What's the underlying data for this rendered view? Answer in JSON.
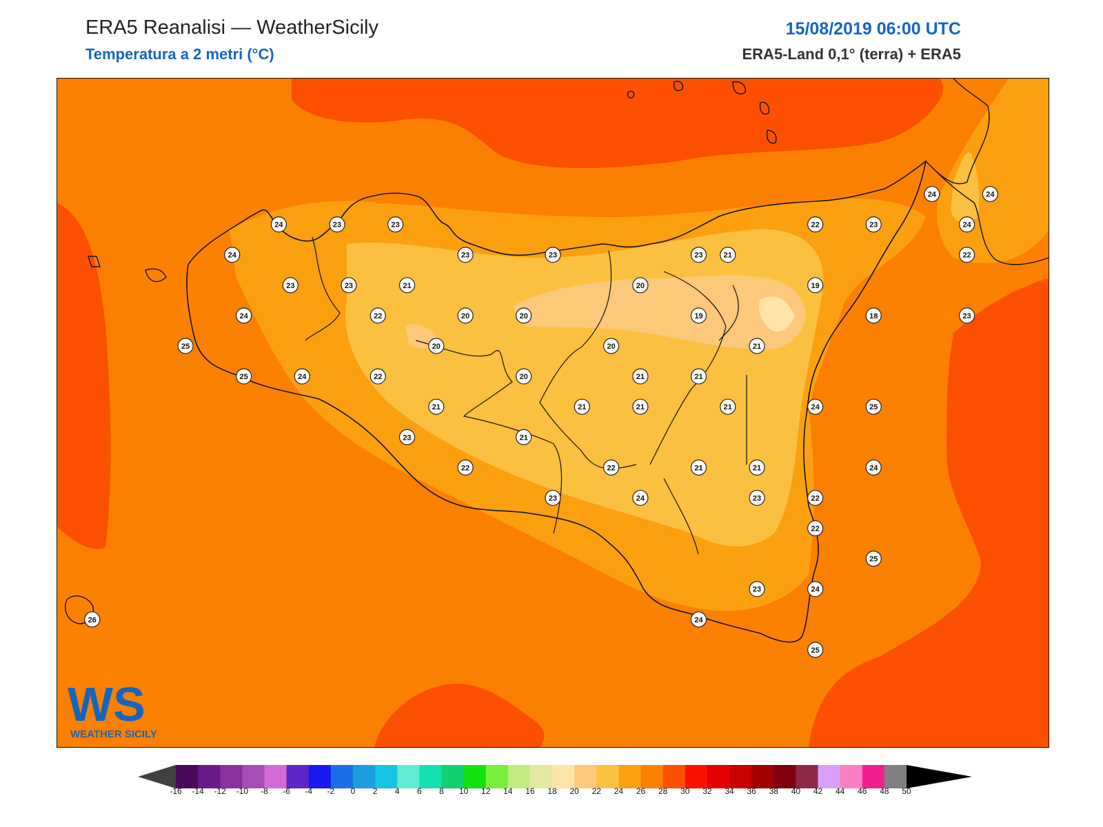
{
  "header": {
    "title": "ERA5 Reanalisi — WeatherSicily",
    "subtitle": "Temperatura a 2 metri (°C)",
    "datetime": "15/08/2019 06:00 UTC",
    "source": "ERA5-Land 0,1° (terra) + ERA5"
  },
  "logo": {
    "text": "WEATHER SICILY",
    "letters": "WS"
  },
  "colorbar": {
    "ticks": [
      "-16",
      "-14",
      "-12",
      "-10",
      "-8",
      "-6",
      "-4",
      "-2",
      "0",
      "2",
      "4",
      "6",
      "8",
      "10",
      "12",
      "14",
      "16",
      "18",
      "20",
      "22",
      "24",
      "26",
      "28",
      "30",
      "32",
      "34",
      "36",
      "38",
      "40",
      "42",
      "44",
      "46",
      "48",
      "50"
    ],
    "colors": [
      "#4a0a5a",
      "#6a1a8a",
      "#8a30a0",
      "#a64eb6",
      "#d46ad8",
      "#5a26c8",
      "#1a1aee",
      "#1a6ee6",
      "#1a9ede",
      "#14c4e0",
      "#60ecd0",
      "#14e0b0",
      "#10d070",
      "#14e010",
      "#7aee3a",
      "#c0ec80",
      "#e4e8a0",
      "#ffe4a8",
      "#fcc87a",
      "#fcc040",
      "#fca010",
      "#fc8000",
      "#fc5000",
      "#fc1000",
      "#e40000",
      "#c80000",
      "#a00000",
      "#800010",
      "#902848",
      "#d8a0f8",
      "#fc80c0",
      "#f02090",
      "#808080",
      "#404040"
    ],
    "under_color": "#404040",
    "over_color": "#000000"
  },
  "stations": [
    {
      "v": "24",
      "lon": 12.9,
      "lat": 38.18
    },
    {
      "v": "23",
      "lon": 13.4,
      "lat": 38.18
    },
    {
      "v": "23",
      "lon": 13.9,
      "lat": 38.18
    },
    {
      "v": "24",
      "lon": 12.5,
      "lat": 38.03
    },
    {
      "v": "23",
      "lon": 13.0,
      "lat": 37.88
    },
    {
      "v": "23",
      "lon": 13.5,
      "lat": 37.88
    },
    {
      "v": "21",
      "lon": 14.0,
      "lat": 37.88
    },
    {
      "v": "24",
      "lon": 12.6,
      "lat": 37.73
    },
    {
      "v": "22",
      "lon": 13.75,
      "lat": 37.73
    },
    {
      "v": "20",
      "lon": 14.5,
      "lat": 37.73
    },
    {
      "v": "20",
      "lon": 15.0,
      "lat": 37.73
    },
    {
      "v": "25",
      "lon": 12.1,
      "lat": 37.58
    },
    {
      "v": "20",
      "lon": 14.25,
      "lat": 37.58
    },
    {
      "v": "25",
      "lon": 12.6,
      "lat": 37.43
    },
    {
      "v": "24",
      "lon": 13.1,
      "lat": 37.43
    },
    {
      "v": "22",
      "lon": 13.75,
      "lat": 37.43
    },
    {
      "v": "20",
      "lon": 15.0,
      "lat": 37.43
    },
    {
      "v": "21",
      "lon": 14.25,
      "lat": 37.28
    },
    {
      "v": "23",
      "lon": 14.0,
      "lat": 37.13
    },
    {
      "v": "21",
      "lon": 15.0,
      "lat": 37.13
    },
    {
      "v": "22",
      "lon": 14.5,
      "lat": 36.98
    },
    {
      "v": "23",
      "lon": 15.25,
      "lat": 36.83
    },
    {
      "v": "23",
      "lon": 14.5,
      "lat": 38.03
    },
    {
      "v": "23",
      "lon": 15.25,
      "lat": 38.03
    },
    {
      "v": "20",
      "lon": 16.0,
      "lat": 37.88
    },
    {
      "v": "20",
      "lon": 15.75,
      "lat": 37.58
    },
    {
      "v": "21",
      "lon": 15.5,
      "lat": 37.28
    },
    {
      "v": "21",
      "lon": 16.0,
      "lat": 37.28
    },
    {
      "v": "22",
      "lon": 15.75,
      "lat": 36.98
    },
    {
      "v": "24",
      "lon": 16.0,
      "lat": 36.83
    },
    {
      "v": "23",
      "lon": 16.5,
      "lat": 38.03
    },
    {
      "v": "21",
      "lon": 16.75,
      "lat": 38.03
    },
    {
      "v": "19",
      "lon": 16.5,
      "lat": 37.73
    },
    {
      "v": "21",
      "lon": 16.5,
      "lat": 37.43
    },
    {
      "v": "21",
      "lon": 16.0,
      "lat": 37.43
    },
    {
      "v": "21",
      "lon": 16.75,
      "lat": 37.28
    },
    {
      "v": "21",
      "lon": 16.5,
      "lat": 36.98
    },
    {
      "v": "21",
      "lon": 17.0,
      "lat": 36.98
    },
    {
      "v": "23",
      "lon": 17.0,
      "lat": 36.83
    },
    {
      "v": "22",
      "lon": 17.5,
      "lat": 36.83
    },
    {
      "v": "22",
      "lon": 17.5,
      "lat": 38.18
    },
    {
      "v": "19",
      "lon": 17.5,
      "lat": 37.88
    },
    {
      "v": "21",
      "lon": 17.0,
      "lat": 37.58
    },
    {
      "v": "24",
      "lon": 17.5,
      "lat": 37.28
    },
    {
      "v": "18",
      "lon": 18.0,
      "lat": 37.73
    },
    {
      "v": "23",
      "lon": 18.0,
      "lat": 38.18
    },
    {
      "v": "25",
      "lon": 18.0,
      "lat": 37.28
    },
    {
      "v": "24",
      "lon": 18.0,
      "lat": 36.98
    },
    {
      "v": "22",
      "lon": 17.5,
      "lat": 36.68
    },
    {
      "v": "25",
      "lon": 18.0,
      "lat": 36.53
    },
    {
      "v": "24",
      "lon": 17.5,
      "lat": 36.38
    },
    {
      "v": "23",
      "lon": 17.0,
      "lat": 36.38
    },
    {
      "v": "24",
      "lon": 16.5,
      "lat": 36.23
    },
    {
      "v": "25",
      "lon": 17.5,
      "lat": 36.08
    },
    {
      "v": "24",
      "lon": 18.5,
      "lat": 38.33
    },
    {
      "v": "24",
      "lon": 19.0,
      "lat": 38.33
    },
    {
      "v": "24",
      "lon": 18.8,
      "lat": 38.18
    },
    {
      "v": "22",
      "lon": 18.8,
      "lat": 38.03
    },
    {
      "v": "23",
      "lon": 18.8,
      "lat": 37.73
    },
    {
      "v": "26",
      "lon": 11.3,
      "lat": 36.23
    }
  ]
}
